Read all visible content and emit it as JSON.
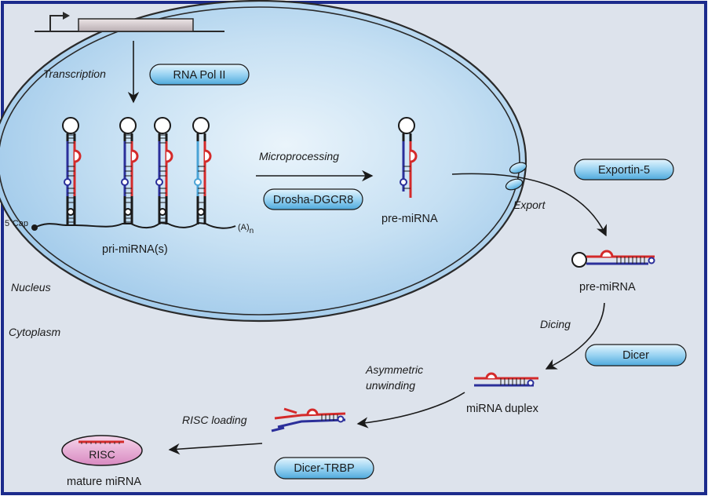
{
  "diagram": {
    "compartments": {
      "nucleus": "Nucleus",
      "cytoplasm": "Cytoplasm"
    },
    "steps": {
      "transcription": "Transcription",
      "microprocessing": "Microprocessing",
      "export": "Export",
      "dicing": "Dicing",
      "asymmetric_unwinding_1": "Asymmetric",
      "asymmetric_unwinding_2": "unwinding",
      "risc_loading": "RISC loading"
    },
    "enzymes": {
      "rna_pol_ii": "RNA Pol II",
      "drosha": "Drosha-DGCR8",
      "exportin": "Exportin-5",
      "dicer": "Dicer",
      "dicer_trbp": "Dicer-TRBP",
      "risc": "RISC"
    },
    "molecules": {
      "pri_mirna": "pri-miRNA(s)",
      "pre_mirna_nuclear": "pre-miRNA",
      "pre_mirna_cyto": "pre-miRNA",
      "mirna_duplex": "miRNA duplex",
      "mature_mirna": "mature miRNA",
      "cap": "5´Cap",
      "polya": "(A)",
      "polya_sub": "n"
    },
    "colors": {
      "frame": "#1c2b8c",
      "background": "#dde3ec",
      "nucleus_fill": "#b9d8f0",
      "pill": "#7cc4ec",
      "risc_fill": "#e7a9d3",
      "strand_blue": "#2b2f9a",
      "strand_red": "#d42a2a",
      "strand_light": "#4aa3d6"
    }
  }
}
